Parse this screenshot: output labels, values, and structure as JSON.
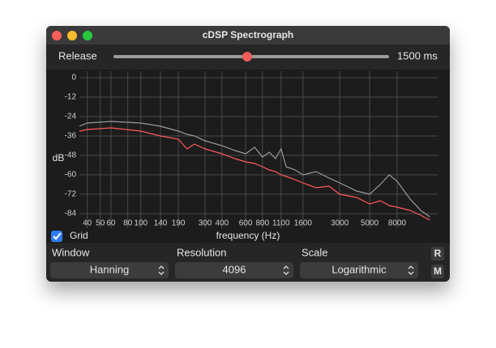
{
  "window": {
    "title": "cDSP Spectrograph"
  },
  "release": {
    "label": "Release",
    "value": "1500 ms"
  },
  "grid_toggle": {
    "label": "Grid",
    "checked": true
  },
  "chart_data": {
    "type": "line",
    "ylabel": "dB",
    "xlabel": "frequency (Hz)",
    "log_x": true,
    "grid": true,
    "x": [
      35,
      40,
      60,
      100,
      140,
      190,
      220,
      250,
      300,
      400,
      500,
      600,
      700,
      800,
      900,
      1000,
      1100,
      1200,
      1400,
      1600,
      2000,
      2500,
      3000,
      4000,
      5000,
      6000,
      7000,
      8000,
      10000,
      12000,
      14000
    ],
    "series": [
      {
        "color": "#9a9a9a",
        "values": [
          -30,
          -28,
          -27,
          -28,
          -30,
          -33,
          -35,
          -36,
          -39,
          -42,
          -45,
          -47,
          -43,
          -49,
          -46,
          -50,
          -44,
          -55,
          -57,
          -60,
          -58,
          -62,
          -65,
          -70,
          -72,
          -66,
          -60,
          -64,
          -75,
          -82,
          -86
        ]
      },
      {
        "color": "#ff5a5a",
        "values": [
          -33,
          -32,
          -31,
          -33,
          -36,
          -38,
          -44,
          -41,
          -44,
          -47,
          -50,
          -52,
          -53,
          -55,
          -57,
          -58,
          -60,
          -61,
          -63,
          -65,
          -68,
          -67,
          -72,
          -74,
          -78,
          -76,
          -79,
          -80,
          -82,
          -85,
          -88
        ]
      }
    ],
    "xlim": [
      35,
      16000
    ],
    "xticks": [
      40,
      50,
      60,
      80,
      100,
      140,
      190,
      300,
      400,
      600,
      800,
      1100,
      1600,
      3000,
      5000,
      8000
    ],
    "ylim": [
      -93,
      4
    ],
    "yticks": [
      0,
      -12,
      -24,
      -36,
      -48,
      -60,
      -72,
      -84
    ]
  },
  "controls": [
    {
      "label": "Window",
      "value": "Hanning"
    },
    {
      "label": "Resolution",
      "value": "4096"
    },
    {
      "label": "Scale",
      "value": "Logarithmic"
    }
  ],
  "buttons": [
    "R",
    "M"
  ]
}
